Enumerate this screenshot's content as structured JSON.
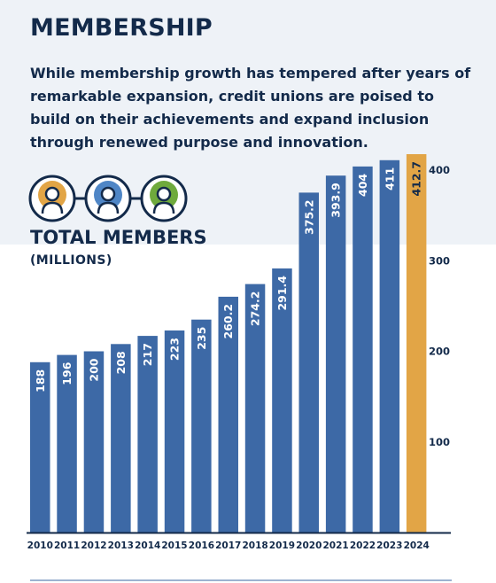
{
  "header": {
    "title": "MEMBERSHIP",
    "intro": "While membership growth has tempered after years of remarkable expansion, credit unions are poised to build on their achievements and expand inclusion through renewed purpose and innovation."
  },
  "metric": {
    "title": "TOTAL MEMBERS",
    "subtitle": "(MILLIONS)",
    "icons": [
      "member-icon",
      "member-icon",
      "member-icon"
    ],
    "icon_ring_colors": [
      "#e2a546",
      "#4f86c6",
      "#6faa3d"
    ]
  },
  "colors": {
    "title_navy": "#132a4a",
    "bar_blue": "#3d69a6",
    "bar_highlight": "#e2a546",
    "band_background": "#eef2f7",
    "rule_blue": "#9db2d0"
  },
  "chart_data": {
    "type": "bar",
    "title": "TOTAL MEMBERS",
    "ylabel": "(MILLIONS)",
    "categories": [
      "2010",
      "2011",
      "2012",
      "2013",
      "2014",
      "2015",
      "2016",
      "2017",
      "2018",
      "2019",
      "2020",
      "2021",
      "2022",
      "2023",
      "2024"
    ],
    "values": [
      188,
      196,
      200,
      208,
      217,
      223,
      235,
      260.2,
      274.2,
      291.4,
      375.2,
      393.9,
      404,
      411,
      412.7
    ],
    "value_labels": [
      "188",
      "196",
      "200",
      "208",
      "217",
      "223",
      "235",
      "260.2",
      "274.2",
      "291.4",
      "375.2",
      "393.9",
      "404",
      "411",
      "412.7"
    ],
    "highlight_category": "2024",
    "yticks": [
      100,
      200,
      300,
      400
    ],
    "ylim": [
      0,
      400
    ],
    "y_axis_side": "right",
    "grid": false,
    "legend": "none"
  }
}
